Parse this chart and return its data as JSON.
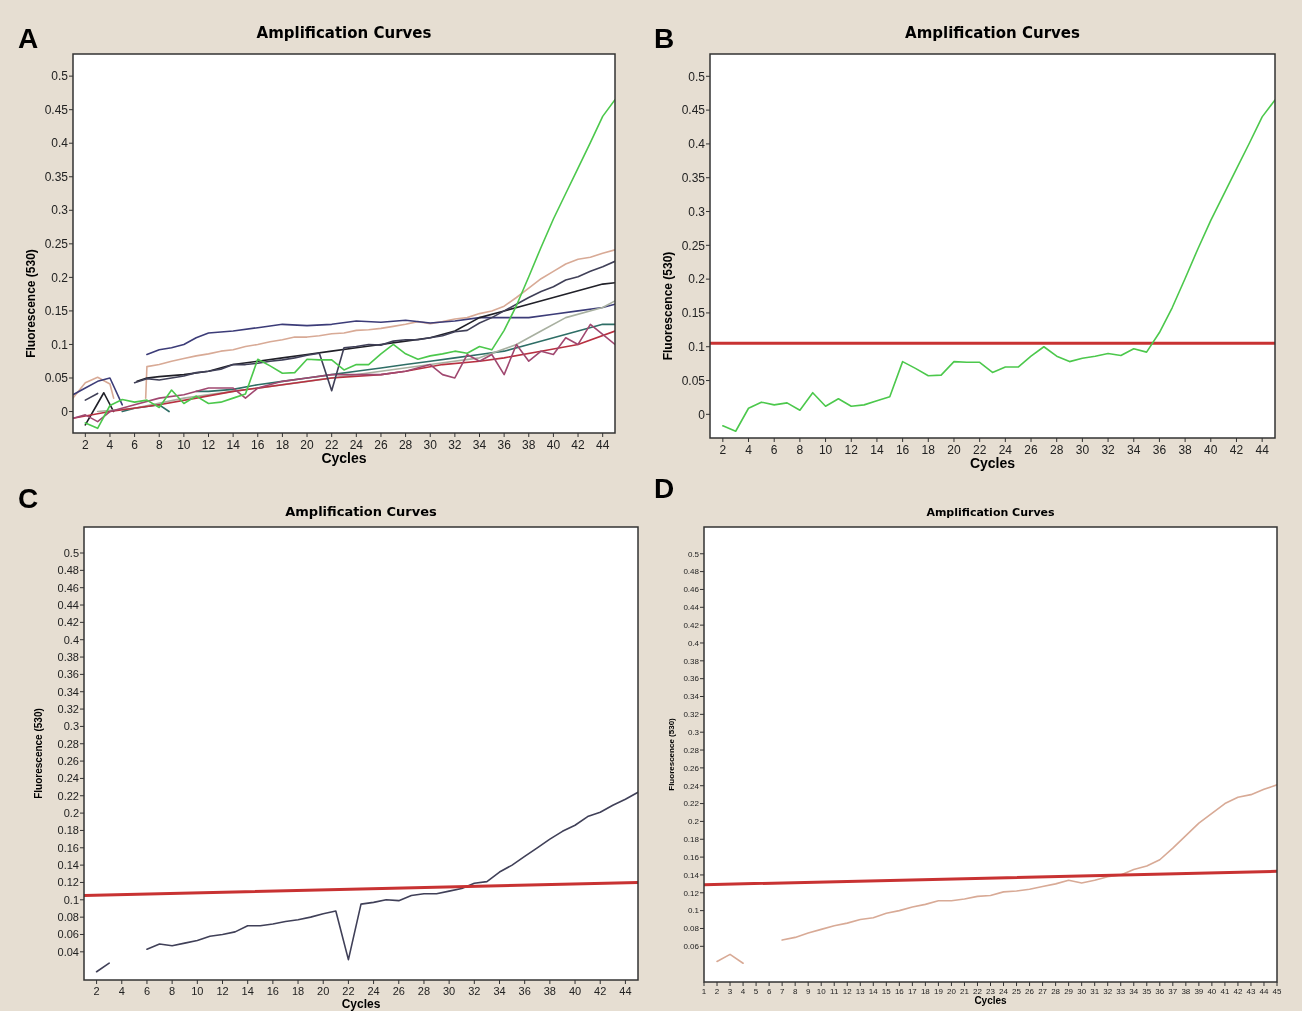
{
  "chart_data": [
    {
      "type": "line",
      "title": "Amplification Curves",
      "xlabel": "Cycles",
      "ylabel": "Fluorescence (530)",
      "annotations": [
        "A"
      ],
      "xlim": [
        1,
        45
      ],
      "ylim": [
        -0.032,
        0.533
      ],
      "xticks": [
        2,
        4,
        6,
        8,
        10,
        12,
        14,
        16,
        18,
        20,
        22,
        24,
        26,
        28,
        30,
        32,
        34,
        36,
        38,
        40,
        42,
        44
      ],
      "yticks": [
        0,
        0.05,
        0.1,
        0.15,
        0.2,
        0.25,
        0.3,
        0.35,
        0.4,
        0.45,
        0.5
      ],
      "series": [
        {
          "color": "#d8aa96",
          "x": [
            1,
            2,
            3,
            4,
            4.3,
            5,
            6,
            6.9,
            7,
            8,
            9,
            10,
            11,
            12,
            13,
            14,
            15,
            16,
            17,
            18,
            19,
            20,
            21,
            22,
            23,
            24,
            25,
            26,
            27,
            28,
            29,
            30,
            31,
            32,
            33,
            34,
            35,
            36,
            37,
            38,
            39,
            40,
            41,
            42,
            43,
            44,
            45
          ],
          "values": [
            0.02,
            0.043,
            0.051,
            0.041,
            0.02,
            null,
            null,
            0.02,
            0.067,
            0.07,
            0.075,
            0.079,
            0.083,
            0.086,
            0.09,
            0.092,
            0.097,
            0.1,
            0.104,
            0.107,
            0.111,
            0.111,
            0.113,
            0.116,
            0.117,
            0.121,
            0.122,
            0.124,
            0.127,
            0.13,
            0.134,
            0.131,
            0.134,
            0.138,
            0.14,
            0.146,
            0.15,
            0.157,
            0.17,
            0.184,
            0.198,
            0.209,
            0.22,
            0.227,
            0.23,
            0.236,
            0.241
          ]
        },
        {
          "color": "#3c3c78",
          "x": [
            1,
            2,
            3,
            4,
            5,
            6,
            7,
            8,
            9,
            10,
            11,
            12,
            14,
            16,
            18,
            20,
            22,
            24,
            26,
            28,
            30,
            32,
            34,
            36,
            38,
            40,
            42,
            44,
            45
          ],
          "values": [
            0.025,
            0.035,
            0.045,
            0.05,
            0.01,
            null,
            0.085,
            0.092,
            0.095,
            0.1,
            0.11,
            0.117,
            0.12,
            0.125,
            0.13,
            0.128,
            0.13,
            0.135,
            0.133,
            0.136,
            0.132,
            0.135,
            0.14,
            0.14,
            0.14,
            0.145,
            0.15,
            0.155,
            0.16
          ]
        },
        {
          "color": "#202028",
          "x": [
            2,
            3,
            3.5,
            4.3,
            5,
            6.2,
            7,
            8,
            10,
            12,
            14,
            16,
            18,
            20,
            22,
            24,
            26,
            28,
            30,
            32,
            34,
            36,
            38,
            40,
            42,
            44,
            45
          ],
          "values": [
            -0.02,
            0.012,
            0.028,
            0.0,
            null,
            0.045,
            0.05,
            0.052,
            0.055,
            0.06,
            0.07,
            0.075,
            0.08,
            0.085,
            0.09,
            0.095,
            0.1,
            0.105,
            0.11,
            0.12,
            0.14,
            0.15,
            0.16,
            0.17,
            0.18,
            0.19,
            0.192
          ]
        },
        {
          "color": "#2e6e66",
          "x": [
            5,
            6,
            8,
            8.8,
            10,
            11,
            12,
            14,
            16,
            18,
            20,
            22,
            24,
            26,
            28,
            30,
            32,
            34,
            36,
            38,
            40,
            42,
            44,
            45
          ],
          "values": [
            0.0,
            0.005,
            0.01,
            0.0,
            null,
            0.03,
            0.03,
            0.033,
            0.04,
            0.045,
            0.05,
            0.055,
            0.06,
            0.065,
            0.07,
            0.075,
            0.08,
            0.085,
            0.09,
            0.1,
            0.11,
            0.12,
            0.13,
            0.13
          ]
        },
        {
          "color": "#a8b0a0",
          "x": [
            3,
            6,
            10,
            14,
            20,
            26,
            30,
            34,
            37,
            39,
            41,
            44,
            45
          ],
          "values": [
            0.0,
            0.005,
            0.02,
            0.03,
            0.045,
            0.06,
            0.07,
            0.08,
            0.1,
            0.12,
            0.14,
            0.155,
            0.165
          ]
        },
        {
          "color": "#b83040",
          "x": [
            1,
            4,
            8,
            11,
            14,
            18,
            22,
            26,
            28,
            31,
            34,
            36,
            39,
            42,
            45
          ],
          "values": [
            -0.01,
            0.0,
            0.01,
            0.02,
            0.03,
            0.04,
            0.05,
            0.055,
            0.06,
            0.07,
            0.075,
            0.08,
            0.09,
            0.1,
            0.12
          ]
        },
        {
          "color": "#a04870",
          "x": [
            1,
            2,
            3,
            4,
            6,
            8,
            10,
            12,
            14,
            15,
            16,
            18,
            20,
            22,
            24,
            26,
            28,
            30,
            31,
            32,
            33,
            34,
            35,
            36,
            37,
            38,
            39,
            40,
            41,
            42,
            43,
            44,
            45
          ],
          "values": [
            -0.01,
            -0.005,
            -0.015,
            0.0,
            0.01,
            0.02,
            0.025,
            0.035,
            0.035,
            0.02,
            0.035,
            0.045,
            0.05,
            0.055,
            0.055,
            0.055,
            0.06,
            0.07,
            0.055,
            0.05,
            0.085,
            0.075,
            0.085,
            0.055,
            0.1,
            0.075,
            0.09,
            0.085,
            0.11,
            0.1,
            0.13,
            0.115,
            0.1
          ]
        },
        {
          "color": "#404058",
          "x": [
            2,
            3,
            4,
            6,
            7,
            8,
            9,
            10,
            11,
            12,
            13,
            14,
            15,
            16,
            17,
            18,
            19,
            20,
            21,
            22,
            23,
            24,
            25,
            26,
            27,
            28,
            29,
            30,
            31,
            32,
            33,
            34,
            35,
            36,
            37,
            38,
            39,
            40,
            41,
            42,
            43,
            44,
            45
          ],
          "values": [
            0.017,
            0.027,
            null,
            0.043,
            0.049,
            0.047,
            0.05,
            0.053,
            0.058,
            0.06,
            0.063,
            0.07,
            0.07,
            0.072,
            0.075,
            0.077,
            0.08,
            0.084,
            0.087,
            0.031,
            0.095,
            0.097,
            0.1,
            0.099,
            0.105,
            0.107,
            0.107,
            0.11,
            0.113,
            0.119,
            0.121,
            0.132,
            0.14,
            0.15,
            0.16,
            0.17,
            0.179,
            0.186,
            0.196,
            0.201,
            0.209,
            0.216,
            0.224
          ]
        },
        {
          "color": "#4cc84c",
          "x": [
            2,
            3,
            4,
            5,
            6,
            7,
            8,
            9,
            10,
            11,
            12,
            13,
            14,
            15,
            16,
            17,
            18,
            19,
            20,
            21,
            22,
            23,
            24,
            25,
            26,
            27,
            28,
            29,
            30,
            31,
            32,
            33,
            34,
            35,
            36,
            37,
            38,
            39,
            40,
            41,
            42,
            43,
            44,
            45
          ],
          "values": [
            -0.017,
            -0.025,
            0.009,
            0.018,
            0.014,
            0.017,
            0.006,
            0.032,
            0.012,
            0.023,
            0.012,
            0.014,
            0.02,
            0.026,
            0.078,
            0.068,
            0.057,
            0.058,
            0.078,
            0.077,
            0.077,
            0.062,
            0.07,
            0.07,
            0.086,
            0.1,
            0.086,
            0.078,
            0.083,
            0.086,
            0.09,
            0.087,
            0.097,
            0.092,
            0.121,
            0.158,
            0.201,
            0.245,
            0.287,
            0.325,
            0.363,
            0.401,
            0.44,
            0.465
          ]
        }
      ]
    },
    {
      "type": "line",
      "title": "Amplification Curves",
      "xlabel": "Cycles",
      "ylabel": "Fluorescence (530)",
      "annotations": [
        "B"
      ],
      "xlim": [
        1,
        45
      ],
      "ylim": [
        -0.035,
        0.533
      ],
      "xticks": [
        2,
        4,
        6,
        8,
        10,
        12,
        14,
        16,
        18,
        20,
        22,
        24,
        26,
        28,
        30,
        32,
        34,
        36,
        38,
        40,
        42,
        44
      ],
      "yticks": [
        0,
        0.05,
        0.1,
        0.15,
        0.2,
        0.25,
        0.3,
        0.35,
        0.4,
        0.45,
        0.5
      ],
      "ref_lines": [
        {
          "axis": "y",
          "value": 0.105,
          "color": "#c83232"
        }
      ],
      "series": [
        {
          "color": "#4cc84c",
          "x": [
            2,
            3,
            4,
            5,
            6,
            7,
            8,
            9,
            10,
            11,
            12,
            13,
            14,
            15,
            16,
            17,
            18,
            19,
            20,
            21,
            22,
            23,
            24,
            25,
            26,
            27,
            28,
            29,
            30,
            31,
            32,
            33,
            34,
            35,
            36,
            37,
            38,
            39,
            40,
            41,
            42,
            43,
            44,
            45
          ],
          "values": [
            -0.017,
            -0.025,
            0.009,
            0.018,
            0.014,
            0.017,
            0.006,
            0.032,
            0.012,
            0.023,
            0.012,
            0.014,
            0.02,
            0.026,
            0.078,
            0.068,
            0.057,
            0.058,
            0.078,
            0.077,
            0.077,
            0.062,
            0.07,
            0.07,
            0.086,
            0.1,
            0.086,
            0.078,
            0.083,
            0.086,
            0.09,
            0.087,
            0.097,
            0.092,
            0.121,
            0.158,
            0.201,
            0.245,
            0.287,
            0.325,
            0.363,
            0.401,
            0.44,
            0.465
          ]
        }
      ]
    },
    {
      "type": "line",
      "title": "Amplification Curves",
      "xlabel": "Cycles",
      "ylabel": "Fluorescence (530)",
      "annotations": [
        "C"
      ],
      "xlim": [
        1,
        45
      ],
      "ylim": [
        0.0075,
        0.53
      ],
      "xticks": [
        2,
        4,
        6,
        8,
        10,
        12,
        14,
        16,
        18,
        20,
        22,
        24,
        26,
        28,
        30,
        32,
        34,
        36,
        38,
        40,
        42,
        44
      ],
      "yticks": [
        0.04,
        0.06,
        0.08,
        0.1,
        0.12,
        0.14,
        0.16,
        0.18,
        0.2,
        0.22,
        0.24,
        0.26,
        0.28,
        0.3,
        0.32,
        0.34,
        0.36,
        0.38,
        0.4,
        0.42,
        0.44,
        0.46,
        0.48,
        0.5
      ],
      "series": [
        {
          "color": "#404058",
          "x": [
            2,
            3,
            4,
            6,
            7,
            8,
            9,
            10,
            11,
            12,
            13,
            14,
            15,
            16,
            17,
            18,
            19,
            20,
            21,
            22,
            23,
            24,
            25,
            26,
            27,
            28,
            29,
            30,
            31,
            32,
            33,
            34,
            35,
            36,
            37,
            38,
            39,
            40,
            41,
            42,
            43,
            44,
            45
          ],
          "values": [
            0.017,
            0.027,
            null,
            0.043,
            0.049,
            0.047,
            0.05,
            0.053,
            0.058,
            0.06,
            0.063,
            0.07,
            0.07,
            0.072,
            0.075,
            0.077,
            0.08,
            0.084,
            0.087,
            0.031,
            0.095,
            0.097,
            0.1,
            0.099,
            0.105,
            0.107,
            0.107,
            0.11,
            0.113,
            0.119,
            0.121,
            0.132,
            0.14,
            0.15,
            0.16,
            0.17,
            0.179,
            0.186,
            0.196,
            0.201,
            0.209,
            0.216,
            0.224
          ]
        },
        {
          "type": "line",
          "color": "#c83232",
          "x": [
            1,
            45
          ],
          "values": [
            0.105,
            0.12
          ]
        }
      ]
    },
    {
      "type": "line",
      "title": "Amplification Curves",
      "xlabel": "Cycles",
      "ylabel": "Fluorescence (530)",
      "annotations": [
        "D"
      ],
      "xlim": [
        1,
        45
      ],
      "ylim": [
        0.02,
        0.53
      ],
      "xticks": [
        1,
        2,
        3,
        4,
        5,
        6,
        7,
        8,
        9,
        10,
        11,
        12,
        13,
        14,
        15,
        16,
        17,
        18,
        19,
        20,
        21,
        22,
        23,
        24,
        25,
        26,
        27,
        28,
        29,
        30,
        31,
        32,
        33,
        34,
        35,
        36,
        37,
        38,
        39,
        40,
        41,
        42,
        43,
        44,
        45
      ],
      "yticks": [
        0.06,
        0.08,
        0.1,
        0.12,
        0.14,
        0.16,
        0.18,
        0.2,
        0.22,
        0.24,
        0.26,
        0.28,
        0.3,
        0.32,
        0.34,
        0.36,
        0.38,
        0.4,
        0.42,
        0.44,
        0.46,
        0.48,
        0.5
      ],
      "series": [
        {
          "color": "#d8aa96",
          "x": [
            2,
            3,
            4,
            5,
            7,
            8,
            9,
            10,
            11,
            12,
            13,
            14,
            15,
            16,
            17,
            18,
            19,
            20,
            21,
            22,
            23,
            24,
            25,
            26,
            27,
            28,
            29,
            30,
            31,
            32,
            33,
            34,
            35,
            36,
            37,
            38,
            39,
            40,
            41,
            42,
            43,
            44,
            45
          ],
          "values": [
            0.043,
            0.051,
            0.041,
            null,
            0.067,
            0.07,
            0.075,
            0.079,
            0.083,
            0.086,
            0.09,
            0.092,
            0.097,
            0.1,
            0.104,
            0.107,
            0.111,
            0.111,
            0.113,
            0.116,
            0.117,
            0.121,
            0.122,
            0.124,
            0.127,
            0.13,
            0.134,
            0.131,
            0.134,
            0.138,
            0.14,
            0.146,
            0.15,
            0.157,
            0.17,
            0.184,
            0.198,
            0.209,
            0.22,
            0.227,
            0.23,
            0.236,
            0.241
          ]
        },
        {
          "type": "line",
          "color": "#c83232",
          "x": [
            1,
            45
          ],
          "values": [
            0.129,
            0.144
          ]
        }
      ]
    }
  ]
}
